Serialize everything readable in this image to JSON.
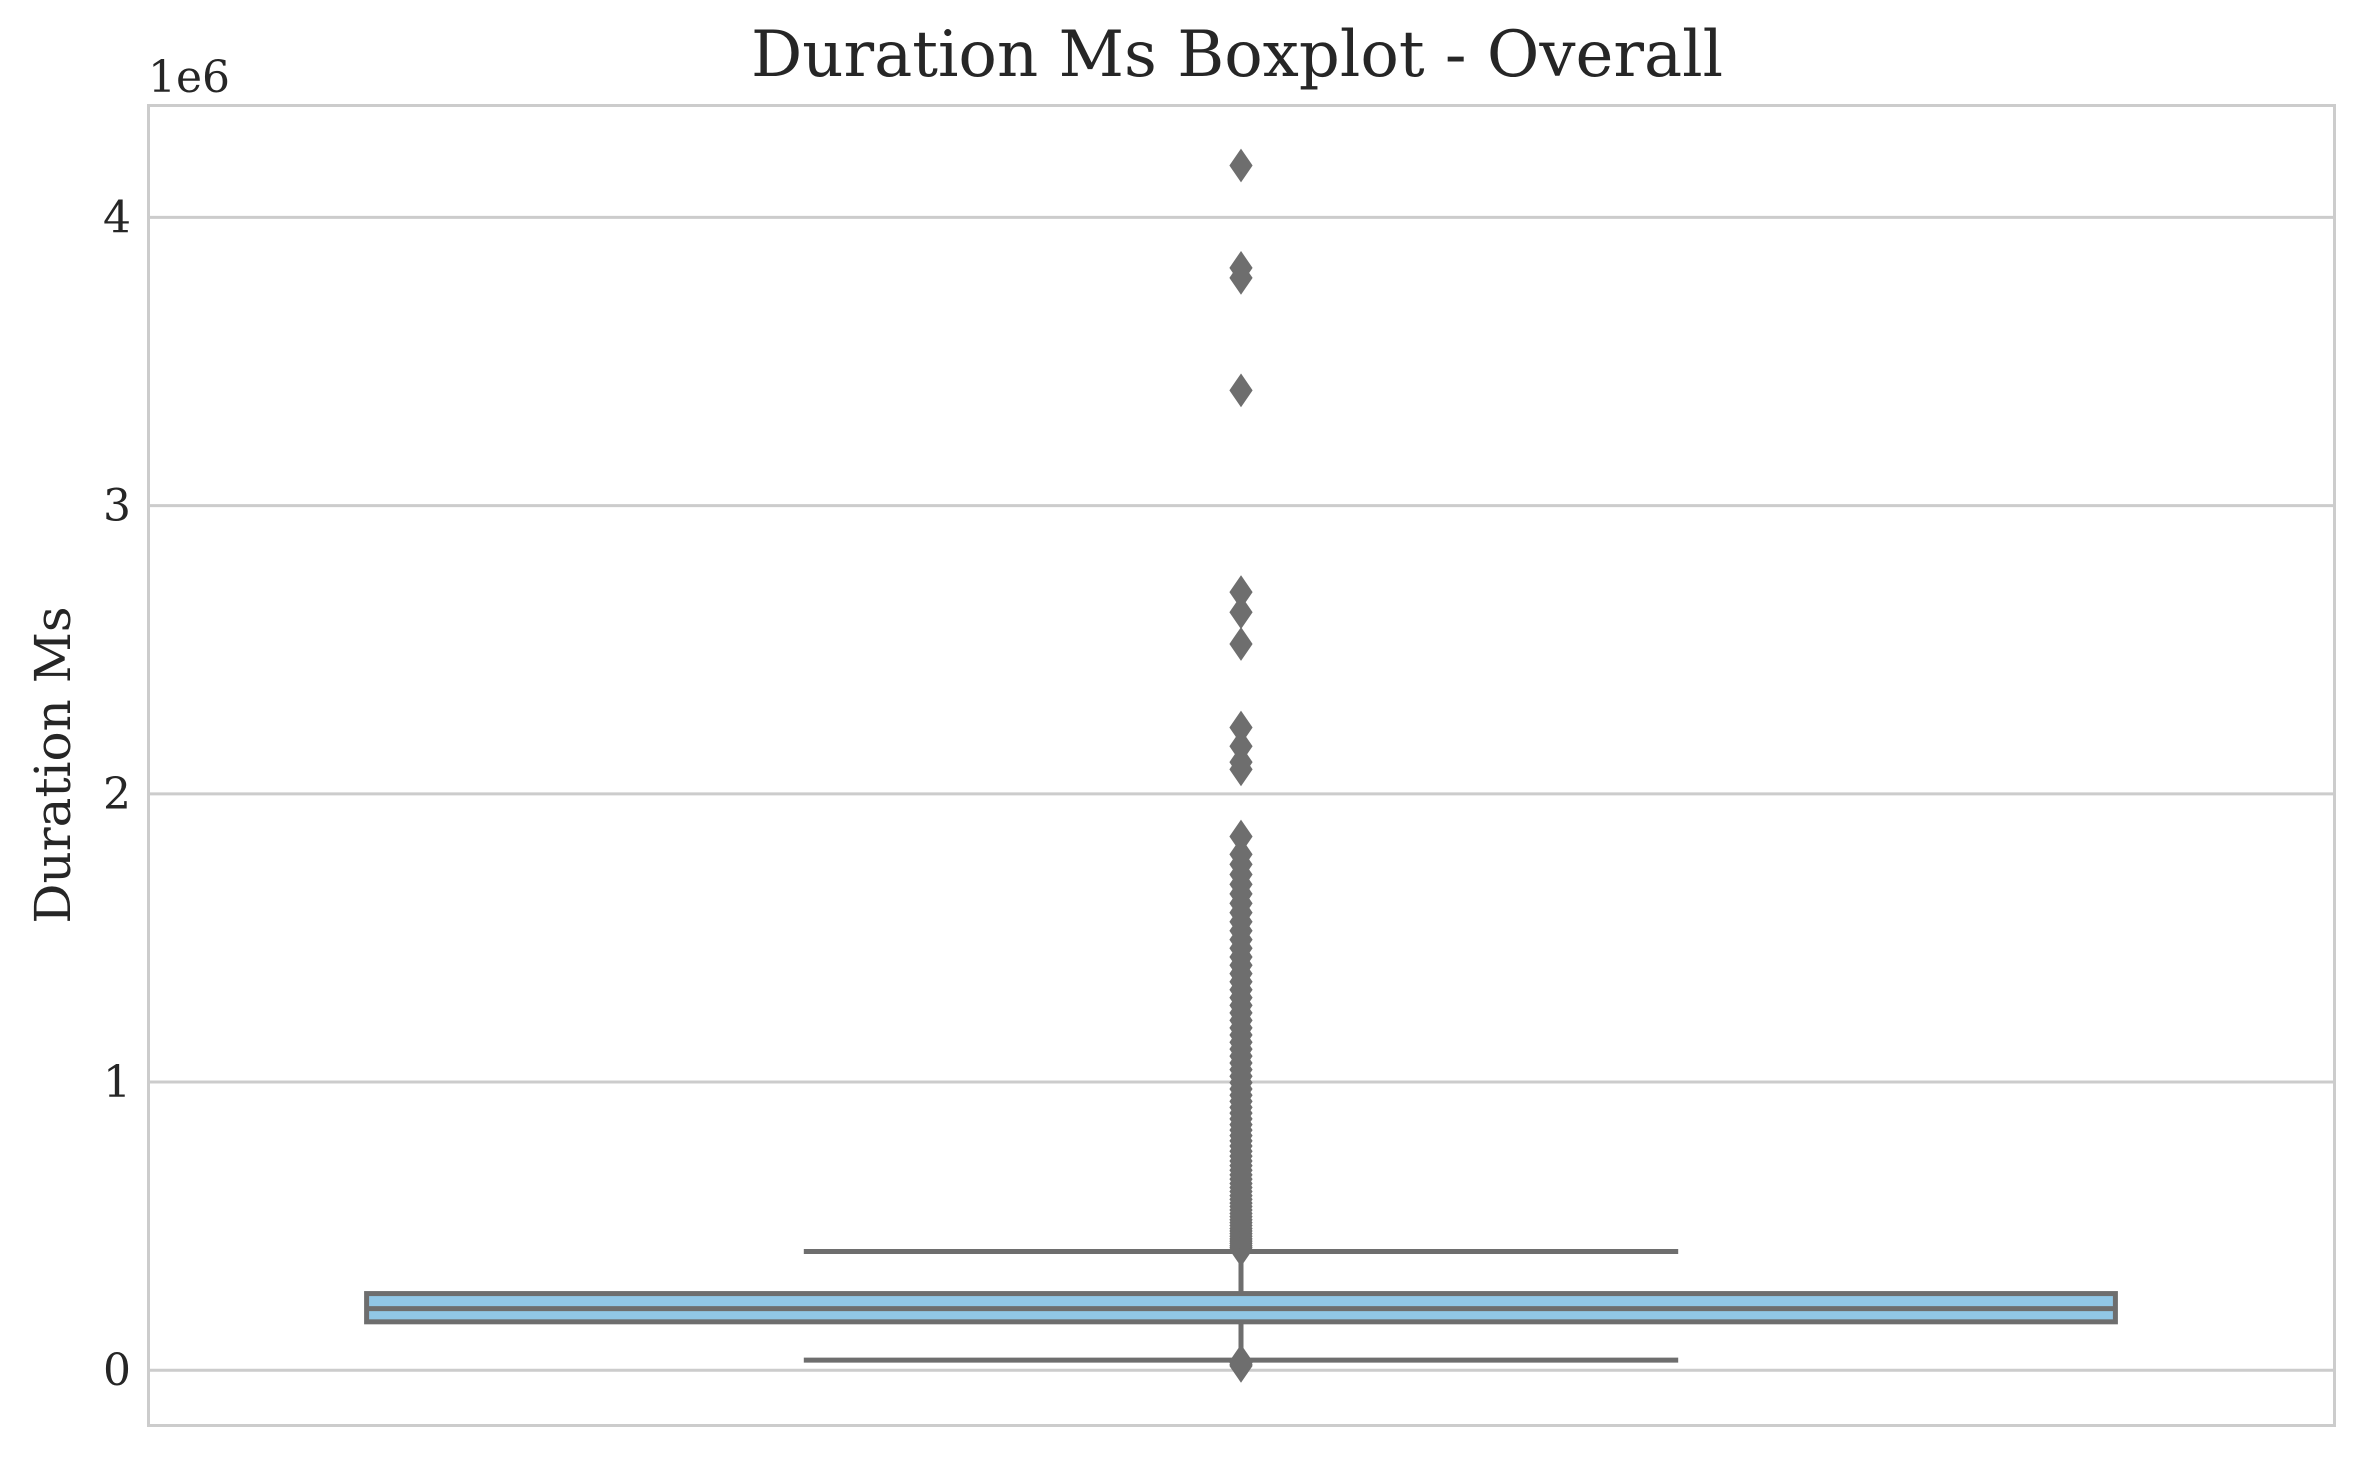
{
  "chart_data": {
    "type": "box",
    "title": "Duration Ms Boxplot - Overall",
    "xlabel": "",
    "ylabel": "Duration Ms",
    "y_offset_label": "1e6",
    "y_scale": 1000000,
    "ylim": [
      -190000,
      4390000
    ],
    "yticks": [
      0,
      1000000,
      2000000,
      3000000,
      4000000
    ],
    "ytick_labels": [
      "0",
      "1",
      "2",
      "3",
      "4"
    ],
    "grid": "horizontal",
    "box": {
      "whisker_low": 35000,
      "q1": 168000,
      "median": 214000,
      "q3": 266000,
      "whisker_high": 412000
    },
    "outliers_low": [
      15000,
      20000,
      26000,
      31000
    ],
    "outliers_high": [
      418000,
      425000,
      432000,
      440000,
      448000,
      456000,
      465000,
      474000,
      483000,
      492000,
      502000,
      512000,
      522000,
      533000,
      544000,
      556000,
      568000,
      580000,
      593000,
      606000,
      620000,
      634000,
      648000,
      663000,
      678000,
      694000,
      710000,
      726000,
      743000,
      760000,
      778000,
      796000,
      814000,
      833000,
      852000,
      872000,
      892000,
      912000,
      933000,
      954000,
      976000,
      998000,
      1020000,
      1043000,
      1066000,
      1090000,
      1114000,
      1138000,
      1163000,
      1188000,
      1214000,
      1240000,
      1266000,
      1293000,
      1320000,
      1348000,
      1376000,
      1405000,
      1434000,
      1464000,
      1494000,
      1525000,
      1556000,
      1588000,
      1620000,
      1653000,
      1686000,
      1720000,
      1755000,
      1790000,
      1852000,
      2085000,
      2110000,
      2165000,
      2230000,
      2520000,
      2630000,
      2700000,
      3400000,
      3790000,
      3825000,
      4180000
    ],
    "colors": {
      "box_fill": "#91c7e6",
      "line": "#6e6e6e",
      "grid": "#cccccc",
      "frame": "#cccccc"
    }
  }
}
